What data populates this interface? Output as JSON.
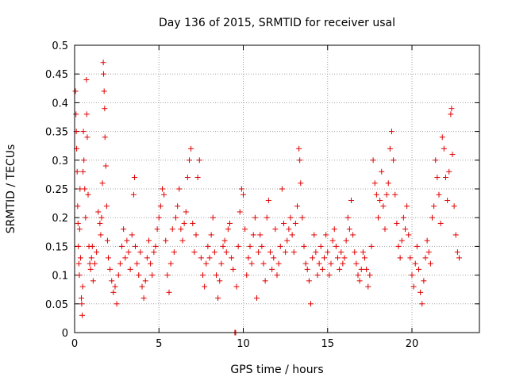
{
  "chart_data": {
    "type": "scatter",
    "title": "Day 136 of 2015, SRMTID for receiver usal",
    "xlabel": "GPS time / hours",
    "ylabel": "SRMTID / TECUs",
    "xlim": [
      0,
      24
    ],
    "ylim": [
      0,
      0.5
    ],
    "xticks": [
      0,
      5,
      10,
      15,
      20
    ],
    "xtick_labels": [
      "0",
      "5",
      "10",
      "15",
      "20"
    ],
    "yticks": [
      0,
      0.05,
      0.1,
      0.15,
      0.2,
      0.25,
      0.3,
      0.35,
      0.4,
      0.45,
      0.5
    ],
    "ytick_labels": [
      "0",
      "0.05",
      "0.1",
      "0.15",
      "0.2",
      "0.25",
      "0.3",
      "0.35",
      "0.4",
      "0.45",
      "0.5"
    ],
    "grid": true,
    "marker": "+",
    "color": "#e00000",
    "series": [
      {
        "name": "SRMTID",
        "points": [
          [
            0.05,
            0.42
          ],
          [
            0.08,
            0.38
          ],
          [
            0.1,
            0.35
          ],
          [
            0.12,
            0.32
          ],
          [
            0.15,
            0.28
          ],
          [
            0.18,
            0.22
          ],
          [
            0.2,
            0.19
          ],
          [
            0.22,
            0.15
          ],
          [
            0.25,
            0.12
          ],
          [
            0.28,
            0.1
          ],
          [
            0.3,
            0.18
          ],
          [
            0.32,
            0.25
          ],
          [
            0.35,
            0.13
          ],
          [
            0.4,
            0.06
          ],
          [
            0.42,
            0.05
          ],
          [
            0.45,
            0.03
          ],
          [
            0.48,
            0.08
          ],
          [
            0.5,
            0.28
          ],
          [
            0.52,
            0.35
          ],
          [
            0.55,
            0.3
          ],
          [
            0.6,
            0.25
          ],
          [
            0.65,
            0.2
          ],
          [
            0.7,
            0.44
          ],
          [
            0.72,
            0.38
          ],
          [
            0.75,
            0.34
          ],
          [
            0.8,
            0.24
          ],
          [
            0.85,
            0.15
          ],
          [
            0.9,
            0.12
          ],
          [
            0.95,
            0.11
          ],
          [
            1.0,
            0.13
          ],
          [
            1.05,
            0.15
          ],
          [
            1.1,
            0.09
          ],
          [
            1.2,
            0.12
          ],
          [
            1.3,
            0.14
          ],
          [
            1.4,
            0.21
          ],
          [
            1.5,
            0.19
          ],
          [
            1.55,
            0.17
          ],
          [
            1.6,
            0.2
          ],
          [
            1.65,
            0.26
          ],
          [
            1.7,
            0.47
          ],
          [
            1.72,
            0.45
          ],
          [
            1.75,
            0.42
          ],
          [
            1.78,
            0.39
          ],
          [
            1.8,
            0.34
          ],
          [
            1.85,
            0.29
          ],
          [
            1.9,
            0.22
          ],
          [
            1.95,
            0.16
          ],
          [
            2.0,
            0.13
          ],
          [
            2.1,
            0.11
          ],
          [
            2.2,
            0.09
          ],
          [
            2.3,
            0.07
          ],
          [
            2.4,
            0.08
          ],
          [
            2.5,
            0.05
          ],
          [
            2.6,
            0.1
          ],
          [
            2.7,
            0.12
          ],
          [
            2.8,
            0.15
          ],
          [
            2.9,
            0.18
          ],
          [
            3.0,
            0.13
          ],
          [
            3.1,
            0.16
          ],
          [
            3.2,
            0.14
          ],
          [
            3.3,
            0.11
          ],
          [
            3.4,
            0.17
          ],
          [
            3.5,
            0.24
          ],
          [
            3.55,
            0.27
          ],
          [
            3.6,
            0.15
          ],
          [
            3.7,
            0.12
          ],
          [
            3.8,
            0.1
          ],
          [
            3.9,
            0.14
          ],
          [
            4.0,
            0.08
          ],
          [
            4.1,
            0.06
          ],
          [
            4.2,
            0.09
          ],
          [
            4.3,
            0.13
          ],
          [
            4.4,
            0.16
          ],
          [
            4.5,
            0.12
          ],
          [
            4.6,
            0.1
          ],
          [
            4.7,
            0.14
          ],
          [
            4.8,
            0.15
          ],
          [
            4.9,
            0.18
          ],
          [
            5.0,
            0.2
          ],
          [
            5.1,
            0.22
          ],
          [
            5.2,
            0.25
          ],
          [
            5.3,
            0.24
          ],
          [
            5.4,
            0.16
          ],
          [
            5.5,
            0.1
          ],
          [
            5.6,
            0.07
          ],
          [
            5.7,
            0.12
          ],
          [
            5.8,
            0.18
          ],
          [
            5.9,
            0.14
          ],
          [
            6.0,
            0.2
          ],
          [
            6.1,
            0.22
          ],
          [
            6.2,
            0.25
          ],
          [
            6.3,
            0.18
          ],
          [
            6.4,
            0.16
          ],
          [
            6.5,
            0.19
          ],
          [
            6.6,
            0.21
          ],
          [
            6.7,
            0.27
          ],
          [
            6.8,
            0.3
          ],
          [
            6.9,
            0.32
          ],
          [
            7.0,
            0.19
          ],
          [
            7.1,
            0.14
          ],
          [
            7.2,
            0.17
          ],
          [
            7.3,
            0.27
          ],
          [
            7.4,
            0.3
          ],
          [
            7.5,
            0.13
          ],
          [
            7.6,
            0.1
          ],
          [
            7.7,
            0.08
          ],
          [
            7.8,
            0.12
          ],
          [
            7.9,
            0.15
          ],
          [
            8.0,
            0.13
          ],
          [
            8.1,
            0.17
          ],
          [
            8.2,
            0.2
          ],
          [
            8.3,
            0.14
          ],
          [
            8.4,
            0.1
          ],
          [
            8.5,
            0.06
          ],
          [
            8.6,
            0.09
          ],
          [
            8.7,
            0.12
          ],
          [
            8.8,
            0.15
          ],
          [
            8.9,
            0.16
          ],
          [
            9.0,
            0.14
          ],
          [
            9.1,
            0.18
          ],
          [
            9.2,
            0.19
          ],
          [
            9.3,
            0.13
          ],
          [
            9.4,
            0.11
          ],
          [
            9.5,
            0.0
          ],
          [
            9.55,
            0.0
          ],
          [
            9.6,
            0.08
          ],
          [
            9.7,
            0.15
          ],
          [
            9.8,
            0.21
          ],
          [
            9.9,
            0.25
          ],
          [
            10.0,
            0.24
          ],
          [
            10.1,
            0.18
          ],
          [
            10.2,
            0.1
          ],
          [
            10.3,
            0.13
          ],
          [
            10.4,
            0.15
          ],
          [
            10.5,
            0.12
          ],
          [
            10.6,
            0.17
          ],
          [
            10.7,
            0.2
          ],
          [
            10.8,
            0.06
          ],
          [
            10.9,
            0.14
          ],
          [
            11.0,
            0.17
          ],
          [
            11.1,
            0.15
          ],
          [
            11.2,
            0.12
          ],
          [
            11.3,
            0.09
          ],
          [
            11.4,
            0.2
          ],
          [
            11.5,
            0.23
          ],
          [
            11.6,
            0.14
          ],
          [
            11.7,
            0.11
          ],
          [
            11.8,
            0.13
          ],
          [
            11.9,
            0.18
          ],
          [
            12.0,
            0.1
          ],
          [
            12.1,
            0.12
          ],
          [
            12.2,
            0.15
          ],
          [
            12.3,
            0.25
          ],
          [
            12.4,
            0.19
          ],
          [
            12.5,
            0.14
          ],
          [
            12.6,
            0.16
          ],
          [
            12.7,
            0.18
          ],
          [
            12.8,
            0.2
          ],
          [
            12.9,
            0.17
          ],
          [
            13.0,
            0.14
          ],
          [
            13.1,
            0.19
          ],
          [
            13.2,
            0.22
          ],
          [
            13.3,
            0.32
          ],
          [
            13.35,
            0.3
          ],
          [
            13.4,
            0.26
          ],
          [
            13.5,
            0.2
          ],
          [
            13.6,
            0.15
          ],
          [
            13.7,
            0.12
          ],
          [
            13.8,
            0.11
          ],
          [
            13.9,
            0.09
          ],
          [
            14.0,
            0.05
          ],
          [
            14.1,
            0.13
          ],
          [
            14.2,
            0.17
          ],
          [
            14.3,
            0.14
          ],
          [
            14.4,
            0.1
          ],
          [
            14.5,
            0.12
          ],
          [
            14.6,
            0.15
          ],
          [
            14.7,
            0.11
          ],
          [
            14.8,
            0.13
          ],
          [
            14.9,
            0.17
          ],
          [
            15.0,
            0.14
          ],
          [
            15.1,
            0.1
          ],
          [
            15.2,
            0.12
          ],
          [
            15.3,
            0.16
          ],
          [
            15.4,
            0.18
          ],
          [
            15.5,
            0.15
          ],
          [
            15.6,
            0.13
          ],
          [
            15.7,
            0.11
          ],
          [
            15.8,
            0.14
          ],
          [
            15.9,
            0.12
          ],
          [
            16.0,
            0.13
          ],
          [
            16.1,
            0.16
          ],
          [
            16.2,
            0.2
          ],
          [
            16.3,
            0.18
          ],
          [
            16.4,
            0.23
          ],
          [
            16.5,
            0.17
          ],
          [
            16.6,
            0.14
          ],
          [
            16.7,
            0.12
          ],
          [
            16.8,
            0.1
          ],
          [
            16.9,
            0.09
          ],
          [
            17.0,
            0.11
          ],
          [
            17.1,
            0.14
          ],
          [
            17.2,
            0.13
          ],
          [
            17.3,
            0.11
          ],
          [
            17.4,
            0.08
          ],
          [
            17.5,
            0.1
          ],
          [
            17.6,
            0.15
          ],
          [
            17.7,
            0.3
          ],
          [
            17.8,
            0.26
          ],
          [
            17.9,
            0.24
          ],
          [
            18.0,
            0.2
          ],
          [
            18.1,
            0.23
          ],
          [
            18.2,
            0.28
          ],
          [
            18.3,
            0.22
          ],
          [
            18.4,
            0.18
          ],
          [
            18.5,
            0.24
          ],
          [
            18.6,
            0.26
          ],
          [
            18.7,
            0.32
          ],
          [
            18.8,
            0.35
          ],
          [
            18.9,
            0.3
          ],
          [
            19.0,
            0.24
          ],
          [
            19.1,
            0.19
          ],
          [
            19.2,
            0.15
          ],
          [
            19.3,
            0.13
          ],
          [
            19.4,
            0.16
          ],
          [
            19.5,
            0.2
          ],
          [
            19.6,
            0.18
          ],
          [
            19.7,
            0.22
          ],
          [
            19.8,
            0.17
          ],
          [
            19.9,
            0.13
          ],
          [
            20.0,
            0.1
          ],
          [
            20.1,
            0.08
          ],
          [
            20.2,
            0.12
          ],
          [
            20.3,
            0.15
          ],
          [
            20.4,
            0.11
          ],
          [
            20.5,
            0.07
          ],
          [
            20.6,
            0.05
          ],
          [
            20.7,
            0.09
          ],
          [
            20.8,
            0.13
          ],
          [
            20.9,
            0.16
          ],
          [
            21.0,
            0.14
          ],
          [
            21.1,
            0.12
          ],
          [
            21.2,
            0.2
          ],
          [
            21.3,
            0.22
          ],
          [
            21.4,
            0.3
          ],
          [
            21.5,
            0.27
          ],
          [
            21.6,
            0.24
          ],
          [
            21.7,
            0.19
          ],
          [
            21.8,
            0.34
          ],
          [
            21.9,
            0.32
          ],
          [
            22.0,
            0.27
          ],
          [
            22.1,
            0.23
          ],
          [
            22.2,
            0.28
          ],
          [
            22.3,
            0.38
          ],
          [
            22.35,
            0.39
          ],
          [
            22.4,
            0.31
          ],
          [
            22.5,
            0.22
          ],
          [
            22.6,
            0.17
          ],
          [
            22.7,
            0.14
          ],
          [
            22.8,
            0.13
          ]
        ]
      }
    ]
  }
}
